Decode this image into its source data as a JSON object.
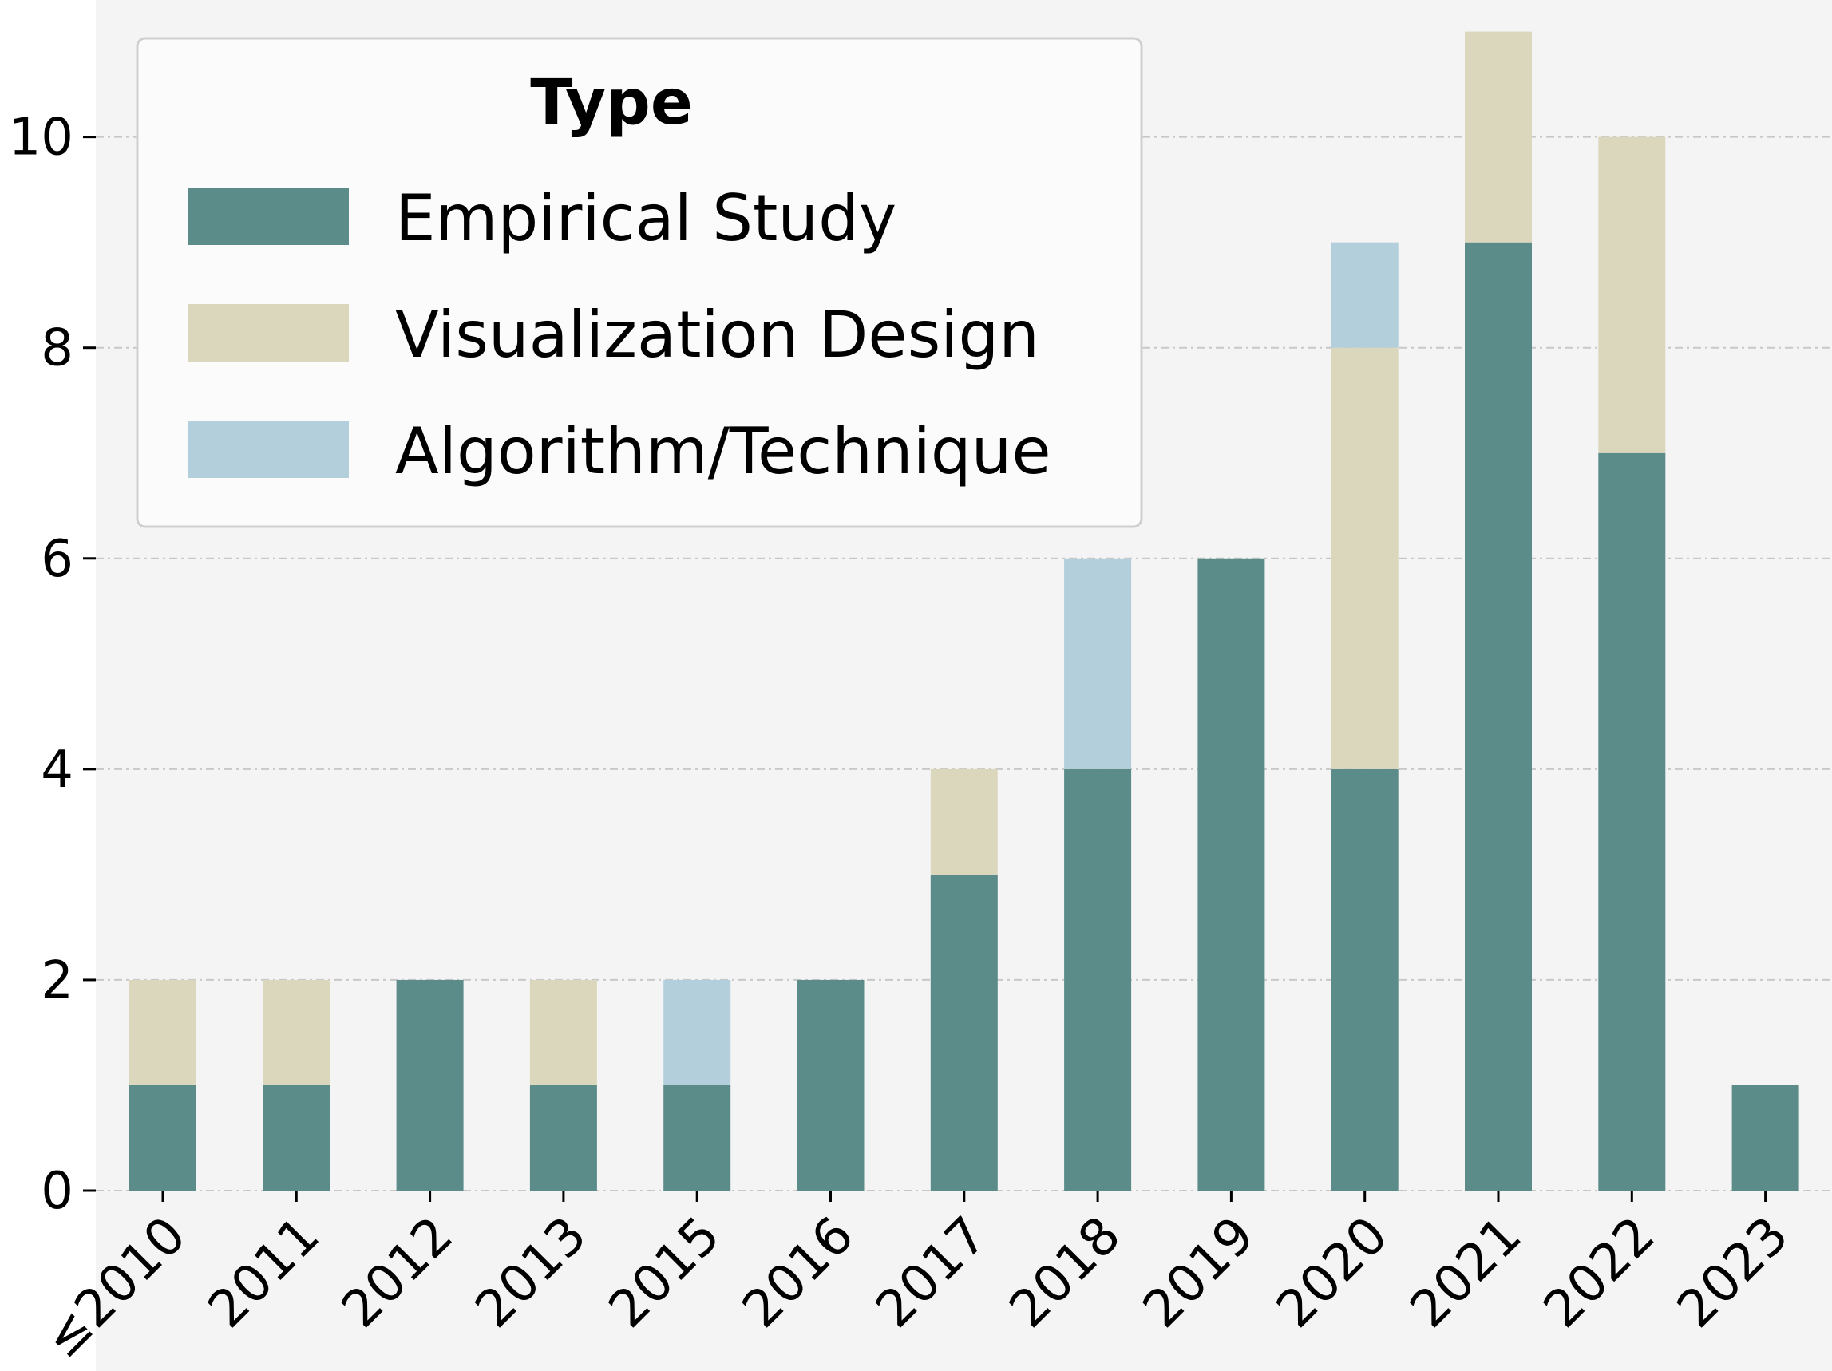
{
  "chart_data": {
    "type": "bar",
    "stacked": true,
    "categories": [
      "≤2010",
      "2011",
      "2012",
      "2013",
      "2015",
      "2016",
      "2017",
      "2018",
      "2019",
      "2020",
      "2021",
      "2022",
      "2023"
    ],
    "series": [
      {
        "name": "Empirical Study",
        "color": "#5b8c89",
        "values": [
          1,
          1,
          2,
          1,
          1,
          2,
          3,
          4,
          6,
          4,
          9,
          7,
          1
        ]
      },
      {
        "name": "Visualization Design",
        "color": "#dbd7bd",
        "values": [
          1,
          1,
          0,
          1,
          0,
          0,
          1,
          0,
          0,
          4,
          2,
          3,
          0
        ]
      },
      {
        "name": "Algorithm/Technique",
        "color": "#b3cfdc",
        "values": [
          0,
          0,
          0,
          0,
          1,
          0,
          0,
          2,
          0,
          1,
          0,
          0,
          0
        ]
      }
    ],
    "yticks": [
      0,
      2,
      4,
      6,
      8,
      10
    ],
    "ylim": [
      0,
      11.3
    ],
    "grid": "horizontal dashed",
    "legend": {
      "title": "Type",
      "position": "top-left"
    },
    "background": "#f4f4f4"
  }
}
